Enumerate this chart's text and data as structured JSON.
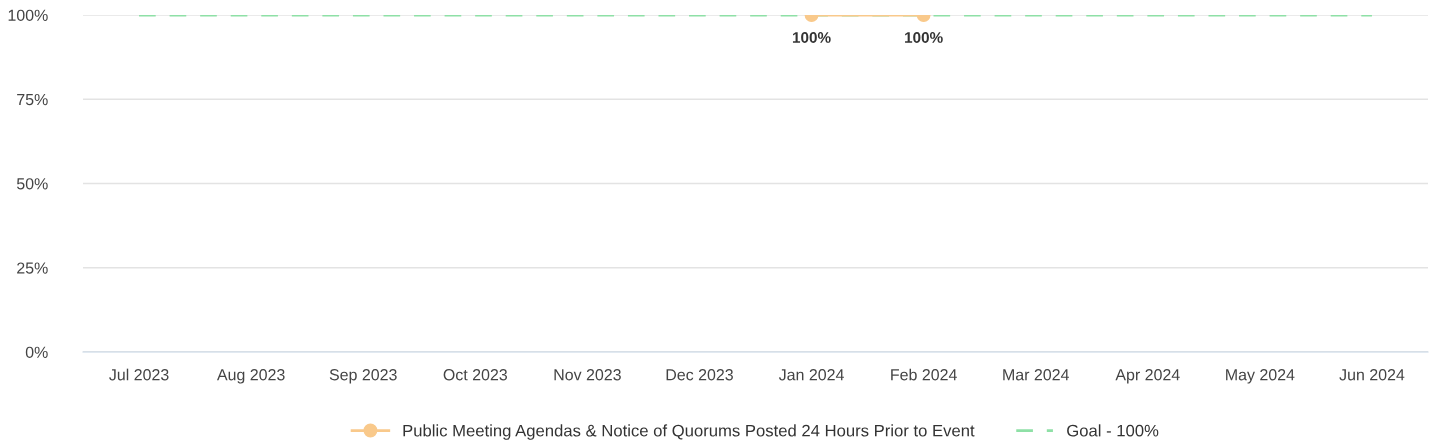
{
  "chart_data": {
    "type": "line",
    "categories": [
      "Jul 2023",
      "Aug 2023",
      "Sep 2023",
      "Oct 2023",
      "Nov 2023",
      "Dec 2023",
      "Jan 2024",
      "Feb 2024",
      "Mar 2024",
      "Apr 2024",
      "May 2024",
      "Jun 2024"
    ],
    "series": [
      {
        "name": "Public Meeting Agendas & Notice of Quorums Posted 24 Hours Prior to Event",
        "color": "#f9c98b",
        "marker": "circle",
        "line_style": "solid",
        "values": [
          null,
          null,
          null,
          null,
          null,
          null,
          100,
          100,
          null,
          null,
          null,
          null
        ],
        "value_labels": [
          null,
          null,
          null,
          null,
          null,
          null,
          "100%",
          "100%",
          null,
          null,
          null,
          null
        ]
      },
      {
        "name": "Goal - 100%",
        "color": "#8ee0a6",
        "marker": "none",
        "line_style": "dashed",
        "values": [
          100,
          100,
          100,
          100,
          100,
          100,
          100,
          100,
          100,
          100,
          100,
          100
        ]
      }
    ],
    "ylim": [
      0,
      100
    ],
    "yticks": [
      {
        "value": 0,
        "label": "0%"
      },
      {
        "value": 25,
        "label": "25%"
      },
      {
        "value": 50,
        "label": "50%"
      },
      {
        "value": 75,
        "label": "75%"
      },
      {
        "value": 100,
        "label": "100%"
      }
    ],
    "grid": "y",
    "legend": "bottom"
  }
}
